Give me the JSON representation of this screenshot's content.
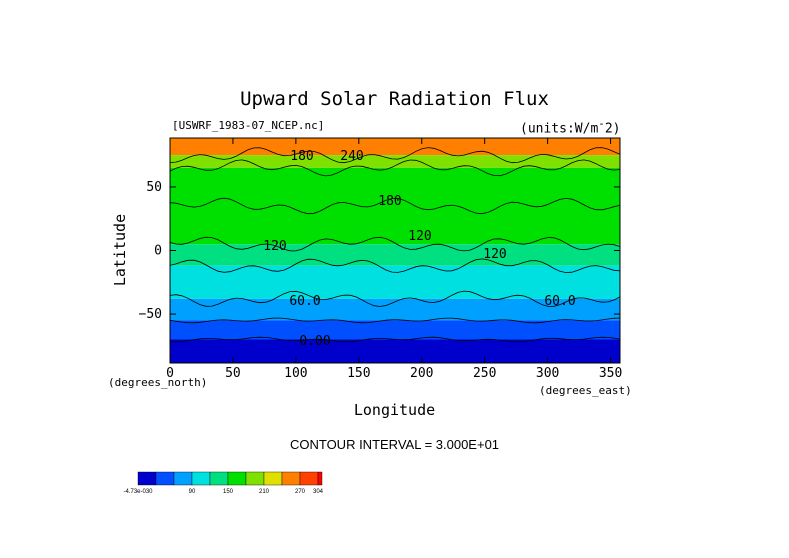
{
  "chart_data": {
    "type": "heatmap",
    "title": "Upward Solar Radiation Flux",
    "source_file": "[USWRF_1983-07_NCEP.nc]",
    "units": "(units:W/m^2)",
    "xlabel": "Longitude",
    "ylabel": "Latitude",
    "x_units": "(degrees_east)",
    "y_units": "(degrees_north)",
    "xlim": [
      0,
      357.5
    ],
    "ylim": [
      -88.5,
      88.5
    ],
    "x_ticks": [
      0,
      50,
      100,
      150,
      200,
      250,
      300,
      350
    ],
    "y_ticks": [
      -50,
      0,
      50
    ],
    "contour_interval_text": "CONTOUR INTERVAL = 3.000E+01",
    "contour_labels": [
      "180",
      "240",
      "180",
      "120",
      "120",
      "120",
      "60.0",
      "60.0",
      "0.00"
    ],
    "latitude_bands": [
      {
        "lat_from": 75,
        "lat_to": 88.5,
        "value": 255
      },
      {
        "lat_from": 65,
        "lat_to": 75,
        "value": 190
      },
      {
        "lat_from": 35,
        "lat_to": 65,
        "value": 175
      },
      {
        "lat_from": 5,
        "lat_to": 35,
        "value": 155
      },
      {
        "lat_from": -12,
        "lat_to": 5,
        "value": 140
      },
      {
        "lat_from": -38,
        "lat_to": -12,
        "value": 100
      },
      {
        "lat_from": -55,
        "lat_to": -38,
        "value": 70
      },
      {
        "lat_from": -70,
        "lat_to": -55,
        "value": 40
      },
      {
        "lat_from": -88.5,
        "lat_to": -70,
        "value": 0
      }
    ],
    "colorbar": {
      "levels": [
        "-4.73e-030",
        "",
        "",
        "90",
        "",
        "150",
        "",
        "210",
        "",
        "270",
        "304"
      ],
      "colors": [
        "#0000cc",
        "#0050ff",
        "#00a0ff",
        "#00e0e0",
        "#00e080",
        "#00e000",
        "#80e000",
        "#e0e000",
        "#ff8000",
        "#ff4000",
        "#ff0000"
      ]
    }
  }
}
